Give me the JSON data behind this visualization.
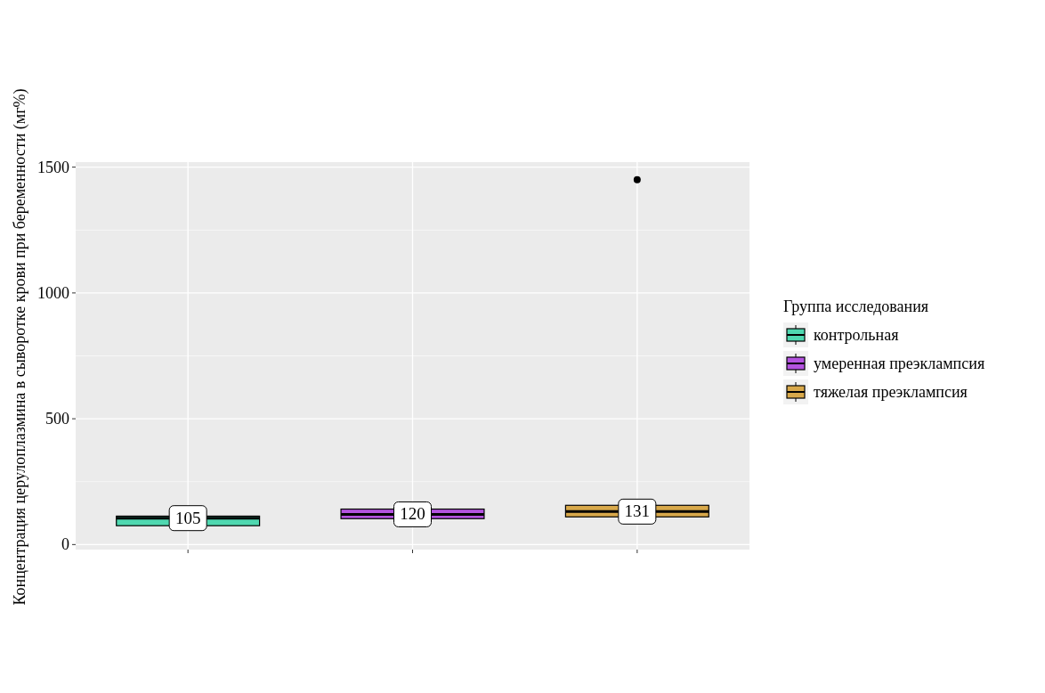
{
  "chart_data": {
    "type": "box",
    "ylabel": "Концентрация церулоплазмина в сыворотке крови при беременности (мг%)",
    "legend_title": "Группа исследования",
    "categories": [
      null,
      null,
      null
    ],
    "series": [
      {
        "name": "контрольная",
        "color": "#4fd8b0",
        "boxes": [
          {
            "low": 75,
            "q1": 75,
            "median": 105,
            "q3": 113,
            "high": 113
          },
          null,
          null
        ],
        "value_labels": [
          "105",
          null,
          null
        ]
      },
      {
        "name": "умеренная преэклампсия",
        "color": "#b453e0",
        "boxes": [
          null,
          {
            "low": 103,
            "q1": 103,
            "median": 120,
            "q3": 141,
            "high": 141
          },
          null
        ],
        "value_labels": [
          null,
          "120",
          null
        ]
      },
      {
        "name": "тяжелая преэклампсия",
        "color": "#d8a84a",
        "boxes": [
          null,
          null,
          {
            "low": 110,
            "q1": 110,
            "median": 131,
            "q3": 156,
            "high": 156,
            "outliers": [
              1450
            ]
          }
        ],
        "value_labels": [
          null,
          null,
          "131"
        ]
      }
    ],
    "ylim": [
      -20,
      1520
    ],
    "yticks": [
      0,
      500,
      1000,
      1500
    ],
    "grid": true,
    "legend": "right"
  }
}
